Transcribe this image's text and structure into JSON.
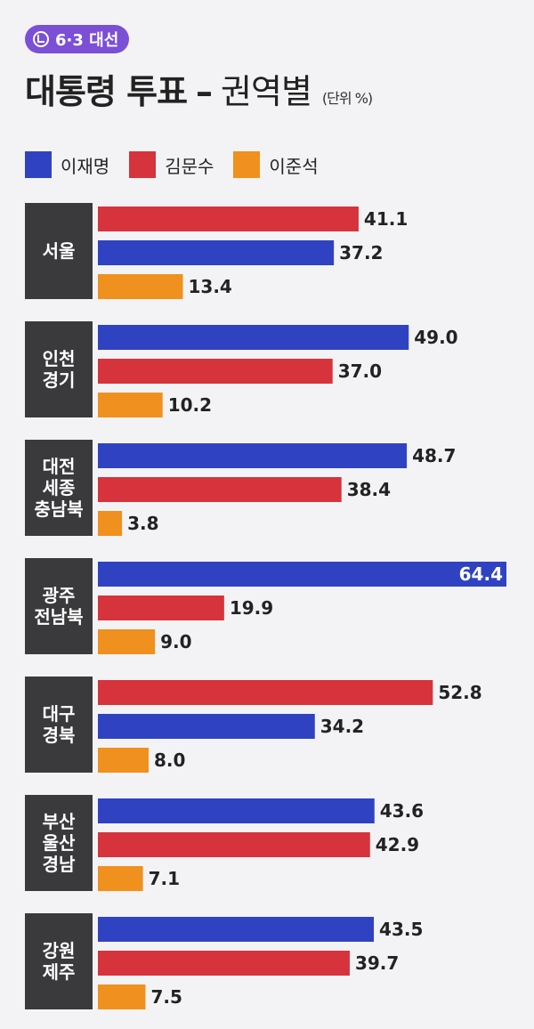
{
  "header": {
    "badge": "6·3 대선",
    "title": "대통령 투표",
    "dash": "–",
    "subtitle": "권역별",
    "unit": "(단위 %)"
  },
  "colors": {
    "이재명": "#2f43c2",
    "김문수": "#d6333d",
    "이준석": "#f0901e",
    "region_box": "#3a3a3c",
    "badge": "#7b4fd6"
  },
  "chart_data": {
    "type": "bar",
    "orientation": "horizontal",
    "legend": [
      "이재명",
      "김문수",
      "이준석"
    ],
    "legend_position": "top-left",
    "unit": "%",
    "xlim": [
      0,
      64.4
    ],
    "grid": false,
    "regions": [
      {
        "label": [
          "서울"
        ],
        "bars": [
          {
            "name": "김문수",
            "value": 41.1
          },
          {
            "name": "이재명",
            "value": 37.2
          },
          {
            "name": "이준석",
            "value": 13.4
          }
        ]
      },
      {
        "label": [
          "인천",
          "경기"
        ],
        "bars": [
          {
            "name": "이재명",
            "value": 49.0
          },
          {
            "name": "김문수",
            "value": 37.0
          },
          {
            "name": "이준석",
            "value": 10.2
          }
        ]
      },
      {
        "label": [
          "대전",
          "세종",
          "충남북"
        ],
        "bars": [
          {
            "name": "이재명",
            "value": 48.7
          },
          {
            "name": "김문수",
            "value": 38.4
          },
          {
            "name": "이준석",
            "value": 3.8
          }
        ]
      },
      {
        "label": [
          "광주",
          "전남북"
        ],
        "bars": [
          {
            "name": "이재명",
            "value": 64.4
          },
          {
            "name": "김문수",
            "value": 19.9
          },
          {
            "name": "이준석",
            "value": 9.0
          }
        ]
      },
      {
        "label": [
          "대구",
          "경북"
        ],
        "bars": [
          {
            "name": "김문수",
            "value": 52.8
          },
          {
            "name": "이재명",
            "value": 34.2
          },
          {
            "name": "이준석",
            "value": 8.0
          }
        ]
      },
      {
        "label": [
          "부산",
          "울산",
          "경남"
        ],
        "bars": [
          {
            "name": "이재명",
            "value": 43.6
          },
          {
            "name": "김문수",
            "value": 42.9
          },
          {
            "name": "이준석",
            "value": 7.1
          }
        ]
      },
      {
        "label": [
          "강원",
          "제주"
        ],
        "bars": [
          {
            "name": "이재명",
            "value": 43.5
          },
          {
            "name": "김문수",
            "value": 39.7
          },
          {
            "name": "이준석",
            "value": 7.5
          }
        ]
      }
    ]
  }
}
